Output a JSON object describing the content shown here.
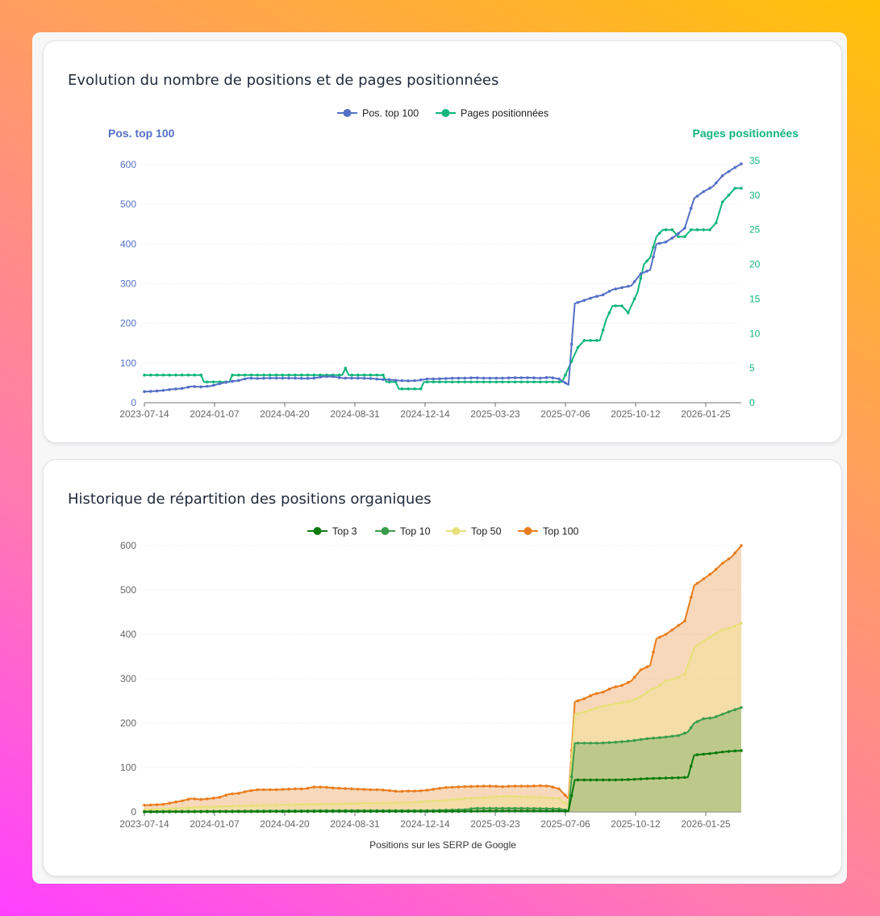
{
  "colors": {
    "blue": "#5470c6",
    "green_pages": "#12b57a",
    "top3": "#0c7a0c",
    "top10": "#3a9d4a",
    "top50": "#e8e07a",
    "top100": "#e87d1e"
  },
  "card1": {
    "title": "Evolution du nombre de positions et de pages positionnées"
  },
  "card2": {
    "title": "Historique de répartition des positions organiques"
  },
  "chart_data": [
    {
      "type": "line",
      "title": "Evolution du nombre de positions et de pages positionnées",
      "x_ticks": [
        "2023-07-14",
        "2024-01-07",
        "2024-04-20",
        "2024-08-31",
        "2024-12-14",
        "2025-03-23",
        "2025-07-06",
        "2025-10-12",
        "2026-01-25"
      ],
      "ylabel_left": "Pos. top 100",
      "ylabel_right": "Pages positionnées",
      "ylim_left": [
        0,
        600
      ],
      "ylim_right": [
        0,
        35
      ],
      "yticks_left": [
        0,
        100,
        200,
        300,
        400,
        500,
        600
      ],
      "yticks_right": [
        0,
        5,
        10,
        15,
        20,
        25,
        30,
        35
      ],
      "legend": [
        "Pos. top 100",
        "Pages positionnées"
      ],
      "legend_position": "top-center",
      "series": [
        {
          "name": "Pos. top 100",
          "axis": "left",
          "points": [
            [
              0,
              28
            ],
            [
              3,
              29
            ],
            [
              6,
              31
            ],
            [
              9,
              34
            ],
            [
              12,
              36
            ],
            [
              15,
              41
            ],
            [
              18,
              40
            ],
            [
              21,
              42
            ],
            [
              24,
              48
            ],
            [
              27,
              53
            ],
            [
              30,
              56
            ],
            [
              33,
              62
            ],
            [
              36,
              61
            ],
            [
              39,
              62
            ],
            [
              42,
              62
            ],
            [
              45,
              62
            ],
            [
              48,
              62
            ],
            [
              51,
              61
            ],
            [
              54,
              62
            ],
            [
              57,
              66
            ],
            [
              60,
              66
            ],
            [
              63,
              62
            ],
            [
              66,
              62
            ],
            [
              69,
              62
            ],
            [
              72,
              61
            ],
            [
              75,
              59
            ],
            [
              78,
              58
            ],
            [
              81,
              56
            ],
            [
              84,
              55
            ],
            [
              87,
              56
            ],
            [
              90,
              60
            ],
            [
              93,
              60
            ],
            [
              96,
              61
            ],
            [
              99,
              62
            ],
            [
              102,
              62
            ],
            [
              105,
              63
            ],
            [
              108,
              62
            ],
            [
              111,
              62
            ],
            [
              114,
              62
            ],
            [
              117,
              63
            ],
            [
              120,
              63
            ],
            [
              123,
              63
            ],
            [
              126,
              62
            ],
            [
              129,
              64
            ],
            [
              132,
              60
            ],
            [
              135,
              45
            ],
            [
              137,
              250
            ],
            [
              140,
              258
            ],
            [
              143,
              266
            ],
            [
              146,
              272
            ],
            [
              149,
              285
            ],
            [
              152,
              290
            ],
            [
              155,
              295
            ],
            [
              158,
              325
            ],
            [
              161,
              335
            ],
            [
              163,
              400
            ],
            [
              166,
              405
            ],
            [
              169,
              420
            ],
            [
              172,
              440
            ],
            [
              175,
              515
            ],
            [
              178,
              532
            ],
            [
              181,
              545
            ],
            [
              184,
              572
            ],
            [
              187,
              588
            ],
            [
              190,
              602
            ]
          ]
        },
        {
          "name": "Pages positionnées",
          "axis": "right",
          "points": [
            [
              0,
              4
            ],
            [
              18,
              4
            ],
            [
              19,
              3
            ],
            [
              27,
              3
            ],
            [
              28,
              4
            ],
            [
              63,
              4
            ],
            [
              64,
              5
            ],
            [
              65,
              4
            ],
            [
              76,
              4
            ],
            [
              77,
              3
            ],
            [
              80,
              3
            ],
            [
              81,
              2
            ],
            [
              88,
              2
            ],
            [
              89,
              3
            ],
            [
              133,
              3
            ],
            [
              136,
              6
            ],
            [
              138,
              8
            ],
            [
              140,
              9
            ],
            [
              145,
              9
            ],
            [
              147,
              12
            ],
            [
              149,
              14
            ],
            [
              152,
              14
            ],
            [
              154,
              13
            ],
            [
              155,
              14
            ],
            [
              157,
              16
            ],
            [
              159,
              20
            ],
            [
              161,
              21
            ],
            [
              163,
              24
            ],
            [
              165,
              25
            ],
            [
              168,
              25
            ],
            [
              170,
              24
            ],
            [
              172,
              24
            ],
            [
              174,
              25
            ],
            [
              180,
              25
            ],
            [
              182,
              26
            ],
            [
              184,
              29
            ],
            [
              186,
              30
            ],
            [
              188,
              31
            ],
            [
              190,
              31
            ]
          ]
        }
      ]
    },
    {
      "type": "area",
      "title": "Historique de répartition des positions organiques",
      "xlabel": "Positions sur les SERP de Google",
      "x_ticks": [
        "2023-07-14",
        "2024-01-07",
        "2024-04-20",
        "2024-08-31",
        "2024-12-14",
        "2025-03-23",
        "2025-07-06",
        "2025-10-12",
        "2026-01-25"
      ],
      "ylim": [
        0,
        600
      ],
      "yticks": [
        0,
        100,
        200,
        300,
        400,
        500,
        600
      ],
      "legend": [
        "Top 3",
        "Top 10",
        "Top 50",
        "Top 100"
      ],
      "legend_position": "top-center",
      "series": [
        {
          "name": "Top 100",
          "points": [
            [
              0,
              15
            ],
            [
              6,
              17
            ],
            [
              12,
              25
            ],
            [
              15,
              30
            ],
            [
              18,
              28
            ],
            [
              21,
              30
            ],
            [
              24,
              33
            ],
            [
              27,
              40
            ],
            [
              30,
              42
            ],
            [
              33,
              47
            ],
            [
              36,
              50
            ],
            [
              42,
              50
            ],
            [
              48,
              52
            ],
            [
              51,
              52
            ],
            [
              54,
              56
            ],
            [
              57,
              56
            ],
            [
              60,
              54
            ],
            [
              66,
              52
            ],
            [
              72,
              50
            ],
            [
              75,
              50
            ],
            [
              78,
              48
            ],
            [
              81,
              46
            ],
            [
              84,
              47
            ],
            [
              87,
              47
            ],
            [
              90,
              49
            ],
            [
              93,
              52
            ],
            [
              96,
              55
            ],
            [
              102,
              57
            ],
            [
              108,
              58
            ],
            [
              111,
              58
            ],
            [
              114,
              57
            ],
            [
              117,
              58
            ],
            [
              120,
              58
            ],
            [
              123,
              58
            ],
            [
              126,
              59
            ],
            [
              129,
              58
            ],
            [
              132,
              52
            ],
            [
              135,
              30
            ],
            [
              137,
              248
            ],
            [
              140,
              255
            ],
            [
              143,
              265
            ],
            [
              146,
              270
            ],
            [
              149,
              280
            ],
            [
              152,
              285
            ],
            [
              155,
              295
            ],
            [
              158,
              320
            ],
            [
              161,
              330
            ],
            [
              163,
              390
            ],
            [
              166,
              400
            ],
            [
              169,
              415
            ],
            [
              172,
              430
            ],
            [
              175,
              510
            ],
            [
              178,
              525
            ],
            [
              181,
              540
            ],
            [
              184,
              560
            ],
            [
              187,
              575
            ],
            [
              190,
              600
            ]
          ]
        },
        {
          "name": "Top 50",
          "points": [
            [
              0,
              5
            ],
            [
              9,
              7
            ],
            [
              15,
              10
            ],
            [
              24,
              12
            ],
            [
              33,
              14
            ],
            [
              45,
              16
            ],
            [
              60,
              18
            ],
            [
              75,
              20
            ],
            [
              84,
              21
            ],
            [
              96,
              26
            ],
            [
              102,
              30
            ],
            [
              108,
              32
            ],
            [
              114,
              35
            ],
            [
              117,
              35
            ],
            [
              120,
              34
            ],
            [
              126,
              33
            ],
            [
              132,
              30
            ],
            [
              135,
              15
            ],
            [
              137,
              220
            ],
            [
              140,
              225
            ],
            [
              143,
              232
            ],
            [
              146,
              238
            ],
            [
              149,
              242
            ],
            [
              152,
              246
            ],
            [
              155,
              250
            ],
            [
              158,
              260
            ],
            [
              161,
              275
            ],
            [
              163,
              280
            ],
            [
              166,
              295
            ],
            [
              169,
              300
            ],
            [
              172,
              310
            ],
            [
              175,
              370
            ],
            [
              178,
              385
            ],
            [
              181,
              398
            ],
            [
              184,
              410
            ],
            [
              187,
              415
            ],
            [
              190,
              425
            ]
          ]
        },
        {
          "name": "Top 10",
          "points": [
            [
              0,
              1
            ],
            [
              30,
              2
            ],
            [
              60,
              3
            ],
            [
              90,
              3
            ],
            [
              102,
              5
            ],
            [
              105,
              8
            ],
            [
              110,
              8
            ],
            [
              120,
              8
            ],
            [
              132,
              7
            ],
            [
              135,
              3
            ],
            [
              137,
              155
            ],
            [
              145,
              155
            ],
            [
              150,
              157
            ],
            [
              155,
              160
            ],
            [
              160,
              165
            ],
            [
              165,
              168
            ],
            [
              170,
              172
            ],
            [
              173,
              180
            ],
            [
              175,
              200
            ],
            [
              178,
              210
            ],
            [
              181,
              212
            ],
            [
              184,
              220
            ],
            [
              187,
              228
            ],
            [
              190,
              235
            ]
          ]
        },
        {
          "name": "Top 3",
          "points": [
            [
              0,
              0
            ],
            [
              60,
              1
            ],
            [
              100,
              1
            ],
            [
              110,
              2
            ],
            [
              120,
              2
            ],
            [
              132,
              2
            ],
            [
              135,
              1
            ],
            [
              137,
              72
            ],
            [
              145,
              72
            ],
            [
              150,
              72
            ],
            [
              155,
              73
            ],
            [
              160,
              75
            ],
            [
              165,
              76
            ],
            [
              170,
              77
            ],
            [
              173,
              78
            ],
            [
              175,
              128
            ],
            [
              178,
              130
            ],
            [
              181,
              132
            ],
            [
              184,
              135
            ],
            [
              187,
              137
            ],
            [
              190,
              138
            ]
          ]
        }
      ]
    }
  ]
}
